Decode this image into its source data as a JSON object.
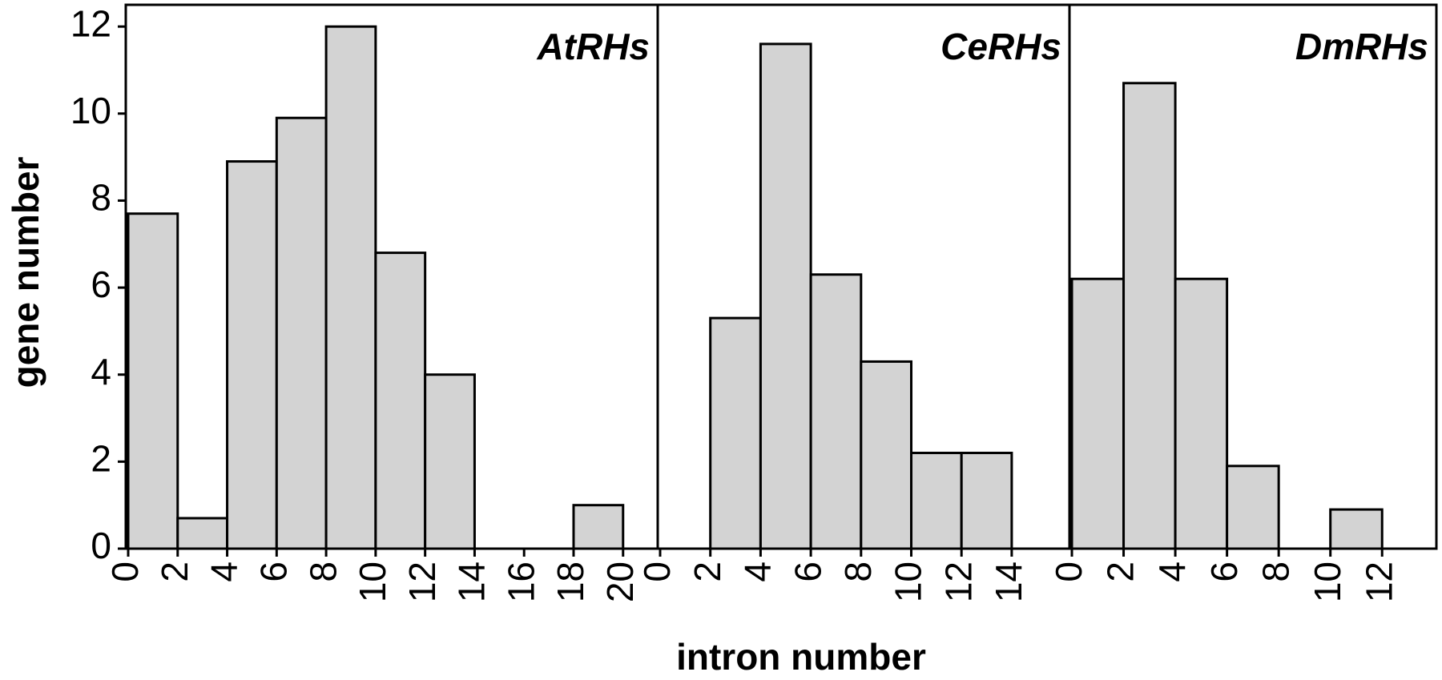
{
  "chart_data": [
    {
      "type": "histogram",
      "title": "AtRHs",
      "ylabel": "gene number",
      "bins": [
        0,
        2,
        4,
        6,
        8,
        10,
        12,
        14,
        16,
        18,
        20
      ],
      "values": [
        7.7,
        0.7,
        8.9,
        9.9,
        12,
        6.8,
        4.0,
        0,
        0,
        1.0
      ],
      "color": "#d3d3d3",
      "xlim": [
        0,
        21.4
      ],
      "xticks": [
        0,
        2,
        4,
        6,
        8,
        10,
        12,
        14,
        16,
        18,
        20
      ],
      "ylim": [
        0,
        12.5
      ],
      "yticks": [
        0,
        2,
        4,
        6,
        8,
        10,
        12
      ]
    },
    {
      "type": "histogram",
      "title": "CeRHs",
      "xlabel": "intron number",
      "bins": [
        0,
        2,
        4,
        6,
        8,
        10,
        12,
        14
      ],
      "values": [
        0,
        5.3,
        11.6,
        6.3,
        4.3,
        2.2,
        2.2
      ],
      "color": "#d3d3d3",
      "xlim": [
        0,
        16.3
      ],
      "xticks": [
        0,
        2,
        4,
        6,
        8,
        10,
        12,
        14
      ],
      "ylim": [
        0,
        12.5
      ]
    },
    {
      "type": "histogram",
      "title": "DmRHs",
      "bins": [
        0,
        2,
        4,
        6,
        8,
        10,
        12
      ],
      "values": [
        6.2,
        10.7,
        6.2,
        1.9,
        0,
        0.9
      ],
      "color": "#d3d3d3",
      "xlim": [
        0,
        14.1
      ],
      "xticks": [
        0,
        2,
        4,
        6,
        8,
        10,
        12
      ],
      "ylim": [
        0,
        12.5
      ]
    }
  ]
}
